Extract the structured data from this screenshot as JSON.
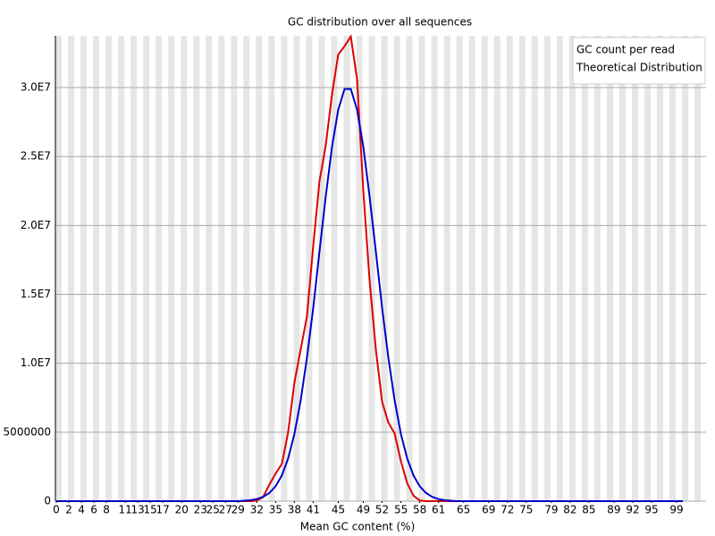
{
  "chart_data": {
    "type": "line",
    "title": "GC distribution over all sequences",
    "xlabel": "Mean GC content (%)",
    "x": [
      0,
      1,
      2,
      3,
      4,
      5,
      6,
      7,
      8,
      9,
      10,
      11,
      12,
      13,
      14,
      15,
      16,
      17,
      18,
      19,
      20,
      21,
      22,
      23,
      24,
      25,
      26,
      27,
      28,
      29,
      30,
      31,
      32,
      33,
      34,
      35,
      36,
      37,
      38,
      39,
      40,
      41,
      42,
      43,
      44,
      45,
      46,
      47,
      48,
      49,
      50,
      51,
      52,
      53,
      54,
      55,
      56,
      57,
      58,
      59,
      60,
      61,
      62,
      63,
      64,
      65,
      66,
      67,
      68,
      69,
      70,
      71,
      72,
      73,
      74,
      75,
      76,
      77,
      78,
      79,
      80,
      81,
      82,
      83,
      84,
      85,
      86,
      87,
      88,
      89,
      90,
      91,
      92,
      93,
      94,
      95,
      96,
      97,
      98,
      99,
      100
    ],
    "series": [
      {
        "name": "GC count per read",
        "color": "#dd0000",
        "values": [
          0,
          0,
          0,
          0,
          0,
          0,
          0,
          0,
          0,
          0,
          0,
          0,
          0,
          0,
          0,
          0,
          0,
          0,
          0,
          0,
          0,
          0,
          0,
          0,
          0,
          0,
          0,
          0,
          0,
          0,
          0,
          0,
          50000,
          300000,
          1200000,
          2000000,
          2700000,
          5000000,
          8600000,
          11000000,
          13400000,
          18500000,
          23200000,
          25800000,
          29500000,
          32400000,
          33000000,
          33700000,
          30600000,
          22500000,
          16000000,
          11000000,
          7200000,
          5700000,
          4900000,
          2900000,
          1300000,
          400000,
          50000,
          0,
          0,
          0,
          0,
          0,
          0,
          0,
          0,
          0,
          0,
          0,
          0,
          0,
          0,
          0,
          0,
          0,
          0,
          0,
          0,
          0,
          0,
          0,
          0,
          0,
          0,
          0,
          0,
          0,
          0,
          0,
          0,
          0,
          0,
          0,
          0,
          0,
          0,
          0,
          0,
          0,
          0
        ]
      },
      {
        "name": "Theoretical Distribution",
        "color": "#0000cc",
        "values": [
          0,
          0,
          0,
          0,
          0,
          0,
          0,
          0,
          0,
          0,
          0,
          0,
          0,
          0,
          0,
          0,
          0,
          0,
          0,
          0,
          0,
          0,
          0,
          0,
          0,
          0,
          0,
          0,
          0,
          0,
          30000,
          70000,
          150000,
          310000,
          590000,
          1080000,
          1870000,
          3100000,
          4870000,
          7300000,
          10400000,
          14000000,
          18100000,
          22100000,
          25700000,
          28400000,
          29900000,
          29900000,
          28400000,
          25700000,
          22100000,
          18100000,
          14000000,
          10400000,
          7300000,
          4870000,
          3100000,
          1870000,
          1080000,
          590000,
          310000,
          150000,
          70000,
          30000,
          0,
          0,
          0,
          0,
          0,
          0,
          0,
          0,
          0,
          0,
          0,
          0,
          0,
          0,
          0,
          0,
          0,
          0,
          0,
          0,
          0,
          0,
          0,
          0,
          0,
          0,
          0,
          0,
          0,
          0,
          0,
          0,
          0,
          0,
          0,
          0,
          0
        ]
      }
    ],
    "xlim": [
      0,
      103.7
    ],
    "xticks": [
      0,
      2,
      4,
      6,
      8,
      11,
      13,
      15,
      17,
      20,
      23,
      25,
      27,
      29,
      32,
      35,
      38,
      41,
      45,
      49,
      52,
      55,
      58,
      61,
      65,
      69,
      72,
      75,
      79,
      82,
      85,
      89,
      92,
      95,
      99
    ],
    "ylim": [
      0,
      33760000
    ],
    "yticks": [
      0,
      5000000,
      {
        "value": 10000000,
        "label": "1.0E7"
      },
      {
        "value": 15000000,
        "label": "1.5E7"
      },
      {
        "value": 20000000,
        "label": "2.0E7"
      },
      {
        "value": 25000000,
        "label": "2.5E7"
      },
      {
        "value": 30000000,
        "label": "3.0E7"
      }
    ],
    "grid": true,
    "legend": "top-right"
  }
}
